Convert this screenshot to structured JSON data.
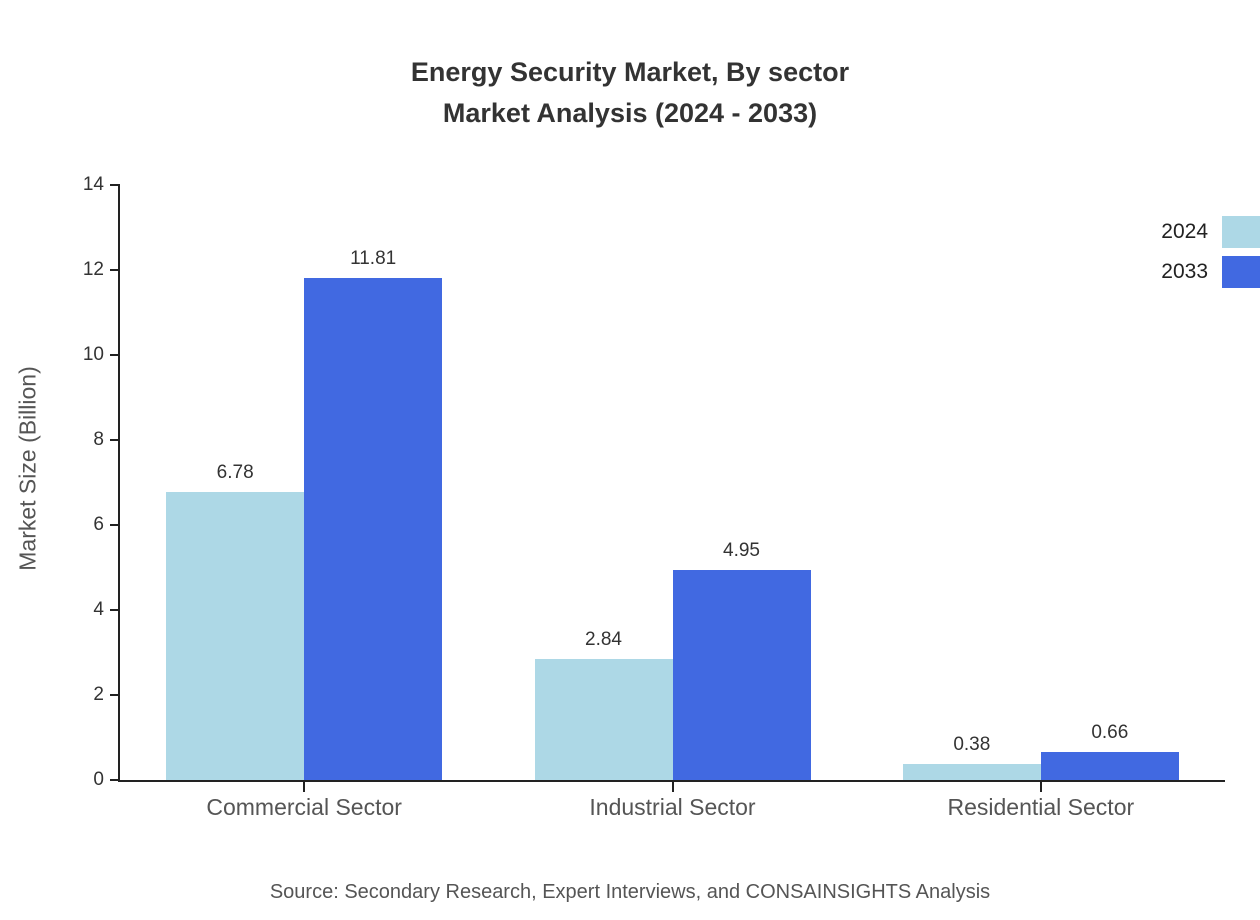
{
  "title": {
    "line1": "Energy Security Market, By sector",
    "line2": "Market Analysis (2024 - 2033)"
  },
  "source": "Source: Secondary Research, Expert Interviews, and CONSAINSIGHTS Analysis",
  "chart_data": {
    "type": "bar",
    "title": "Energy Security Market, By sector Market Analysis (2024 - 2033)",
    "categories": [
      "Commercial Sector",
      "Industrial Sector",
      "Residential Sector"
    ],
    "series": [
      {
        "name": "2024",
        "color": "#ADD8E6",
        "values": [
          6.78,
          2.84,
          0.38
        ]
      },
      {
        "name": "2033",
        "color": "#4169E1",
        "values": [
          11.81,
          4.95,
          0.66
        ]
      }
    ],
    "xlabel": "",
    "ylabel": "Market Size (Billion)",
    "ylim": [
      0,
      14
    ],
    "ytick_step": 2,
    "grid": false,
    "legend_position": "top-right",
    "value_labels": true
  }
}
